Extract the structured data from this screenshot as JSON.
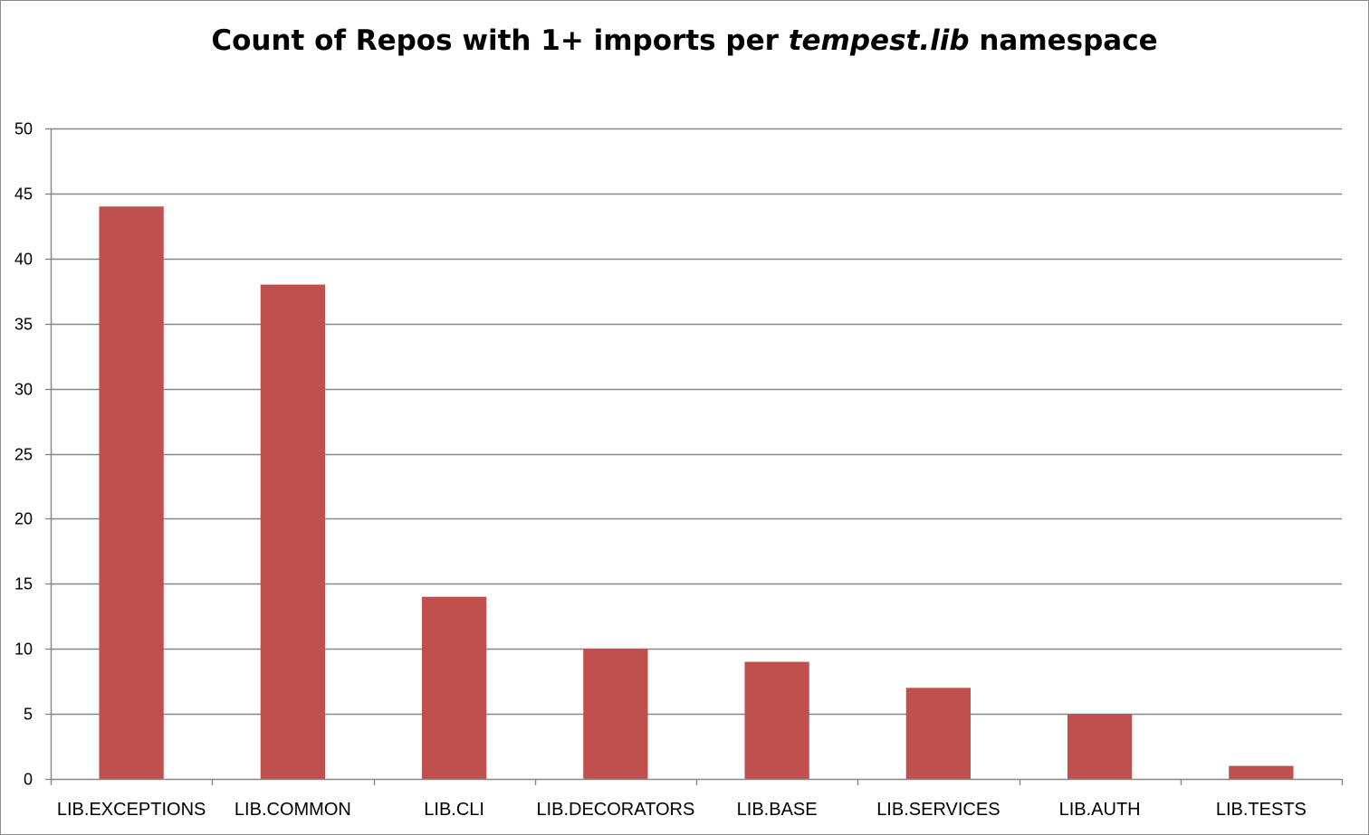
{
  "chart_data": {
    "type": "bar",
    "title_parts": [
      "Count of Repos with 1+ imports per ",
      "tempest.lib",
      " namespace"
    ],
    "xlabel": "",
    "ylabel": "",
    "categories": [
      "LIB.EXCEPTIONS",
      "LIB.COMMON",
      "LIB.CLI",
      "LIB.DECORATORS",
      "LIB.BASE",
      "LIB.SERVICES",
      "LIB.AUTH",
      "LIB.TESTS"
    ],
    "values": [
      44,
      38,
      14,
      10,
      9,
      7,
      5,
      1
    ],
    "ylim": [
      0,
      50
    ],
    "yticks": [
      "0",
      "5",
      "10",
      "15",
      "20",
      "25",
      "30",
      "35",
      "40",
      "45",
      "50"
    ],
    "grid": true,
    "legend": "none",
    "colors": {
      "bar": "#c0504d",
      "grid": "#878787",
      "axis": "#878787"
    }
  }
}
